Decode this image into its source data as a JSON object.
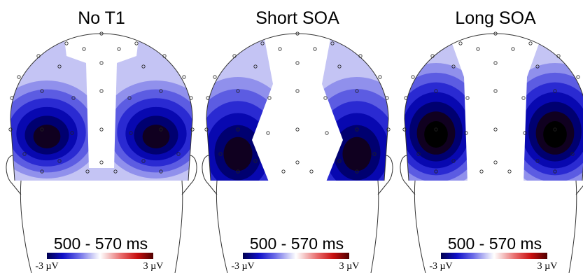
{
  "panels": [
    {
      "title": "No T1",
      "time_window": "500 - 570 ms",
      "scale_min_label": "-3 µV",
      "scale_max_label": "3 µV"
    },
    {
      "title": "Short SOA",
      "time_window": "500 - 570 ms",
      "scale_min_label": "-3 µV",
      "scale_max_label": "3 µV"
    },
    {
      "title": "Long SOA",
      "time_window": "500 - 570 ms",
      "scale_min_label": "-3 µV",
      "scale_max_label": "3 µV"
    }
  ]
}
